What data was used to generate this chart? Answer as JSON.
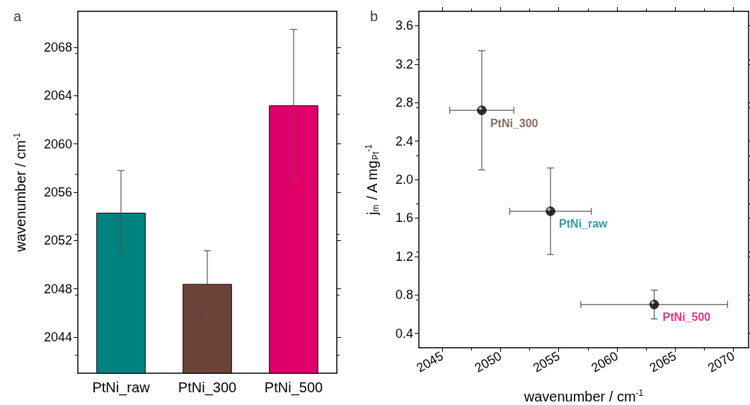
{
  "chart_data": [
    {
      "type": "bar",
      "title": "a",
      "categories": [
        "PtNi_raw",
        "PtNi_300",
        "PtNi_500"
      ],
      "values": [
        2054.3,
        2048.4,
        2063.2
      ],
      "colors": [
        "#00827f",
        "#6b4339",
        "#e0006a"
      ],
      "errors": [
        3.5,
        2.75,
        6.3
      ],
      "ylabel": "wavenumber / cm$^{-1}$",
      "ylim": [
        2041,
        2071
      ],
      "yticks": [
        2044,
        2048,
        2052,
        2056,
        2060,
        2064,
        2068
      ]
    },
    {
      "type": "scatter",
      "title": "b",
      "x": [
        2054.3,
        2048.4,
        2063.2
      ],
      "values": [
        1.67,
        2.72,
        0.7
      ],
      "color": "#000000",
      "marker": "circle",
      "xerrors": [
        3.5,
        2.75,
        6.3
      ],
      "errors": [
        0.45,
        0.62,
        0.15
      ],
      "annotations": [
        {
          "text": "PtNi_raw",
          "x": 2054.3,
          "y": 1.67
        },
        {
          "text": "PtNi_300",
          "x": 2048.4,
          "y": 2.72
        },
        {
          "text": "PtNi_500",
          "x": 2063.2,
          "y": 0.7
        }
      ],
      "xlabel": "wavenumber / cm$^{-1}$",
      "ylabel": "j$_{m}$ / A mg$_{Pt}$$^{-1}$",
      "xlim": [
        2043,
        2071.3
      ],
      "xticks": [
        2045,
        2050,
        2055,
        2060,
        2065,
        2070
      ],
      "ylim": [
        0.25,
        3.75
      ],
      "yticks": [
        0.4,
        0.8,
        1.2,
        1.6,
        {
          "value": 2,
          "label": "2.0"
        },
        2.4,
        2.8,
        3.2,
        3.6
      ]
    }
  ]
}
